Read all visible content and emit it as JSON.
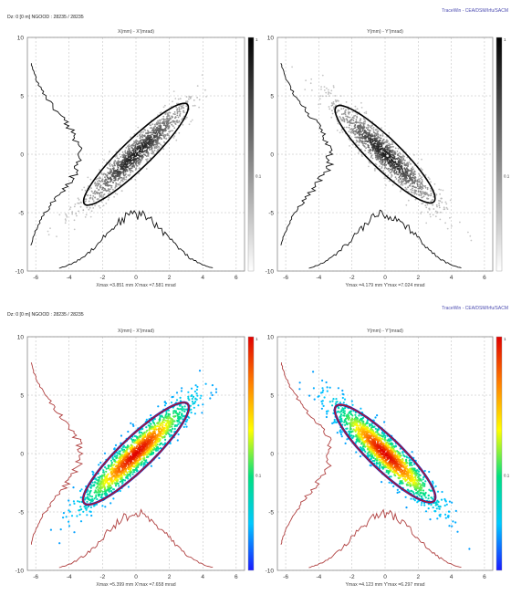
{
  "header_watermark": "TraceWin - CEA/DSM/Irfu/SACM",
  "colors": {
    "bw_histogram": "#111111",
    "color_histogram": "#b04040",
    "color_ellipse_inner": "#c01818",
    "color_ellipse_outer": "#1a28c8",
    "grid": "#b8b8b8",
    "colorbar_gradient": [
      "#1a1aff",
      "#00c8ff",
      "#00e080",
      "#ffff00",
      "#ff8000",
      "#e00000"
    ]
  },
  "panels": [
    {
      "name": "bw-top",
      "header": "Dz: 0 [0 m]    NGOOD : 28235 / 28235",
      "render": "bw",
      "charts": [
        {
          "type": "scatter",
          "title": "X(mm) - X'(mrad)",
          "footer": "Xmax =3.851 mm  X'max =7.581 mrad",
          "x_ticks": [
            "-6",
            "-4",
            "-2",
            "0",
            "2",
            "4",
            "6"
          ],
          "y_ticks": [
            "-10",
            "-5",
            "0",
            "5",
            "10"
          ],
          "xlim": [
            -6.5,
            6.5
          ],
          "ylim": [
            -10,
            10
          ],
          "ellipse": {
            "x": 0.0,
            "y": 0.0,
            "semi_major": 6.6,
            "semi_minor": 0.8,
            "slope_deg": 55
          },
          "colorbar_ticks": [
            "1",
            "0.1"
          ]
        },
        {
          "type": "scatter",
          "title": "Y(mm) - Y'(mrad)",
          "footer": "Ymax =4.179 mm  Y'max =7.024 mrad",
          "x_ticks": [
            "-6",
            "-4",
            "-2",
            "0",
            "2",
            "4",
            "6"
          ],
          "y_ticks": [
            "-10",
            "-5",
            "0",
            "5",
            "10"
          ],
          "xlim": [
            -6.5,
            6.5
          ],
          "ylim": [
            -10,
            10
          ],
          "ellipse": {
            "x": 0.0,
            "y": 0.0,
            "semi_major": 6.3,
            "semi_minor": 0.85,
            "slope_deg": -55
          },
          "colorbar_ticks": [
            "1",
            "0.1"
          ]
        }
      ]
    },
    {
      "name": "color-bottom",
      "header": "Dz: 0 [0 m]    NGOOD : 28235 / 28235",
      "render": "color",
      "charts": [
        {
          "type": "scatter",
          "title": "X(mm) - X'(mrad)",
          "footer": "Xmax =5.399 mm  X'max =7.658 mrad",
          "x_ticks": [
            "-6",
            "-4",
            "-2",
            "0",
            "2",
            "4",
            "6"
          ],
          "y_ticks": [
            "-10",
            "-5",
            "0",
            "5",
            "10"
          ],
          "xlim": [
            -6.5,
            6.5
          ],
          "ylim": [
            -10,
            10
          ],
          "ellipse": {
            "x": 0.0,
            "y": 0.0,
            "semi_major": 6.6,
            "semi_minor": 0.9,
            "slope_deg": 55
          },
          "colorbar_ticks": [
            "1",
            "0.1"
          ]
        },
        {
          "type": "scatter",
          "title": "Y(mm) - Y'(mrad)",
          "footer": "Ymax =4.123 mm  Y'max =6.297 mrad",
          "x_ticks": [
            "-6",
            "-4",
            "-2",
            "0",
            "2",
            "4",
            "6"
          ],
          "y_ticks": [
            "-10",
            "-5",
            "0",
            "5",
            "10"
          ],
          "xlim": [
            -6.5,
            6.5
          ],
          "ylim": [
            -10,
            10
          ],
          "ellipse": {
            "x": 0.0,
            "y": 0.0,
            "semi_major": 6.3,
            "semi_minor": 0.9,
            "slope_deg": -55
          },
          "colorbar_ticks": [
            "1",
            "0.1"
          ]
        }
      ]
    }
  ]
}
